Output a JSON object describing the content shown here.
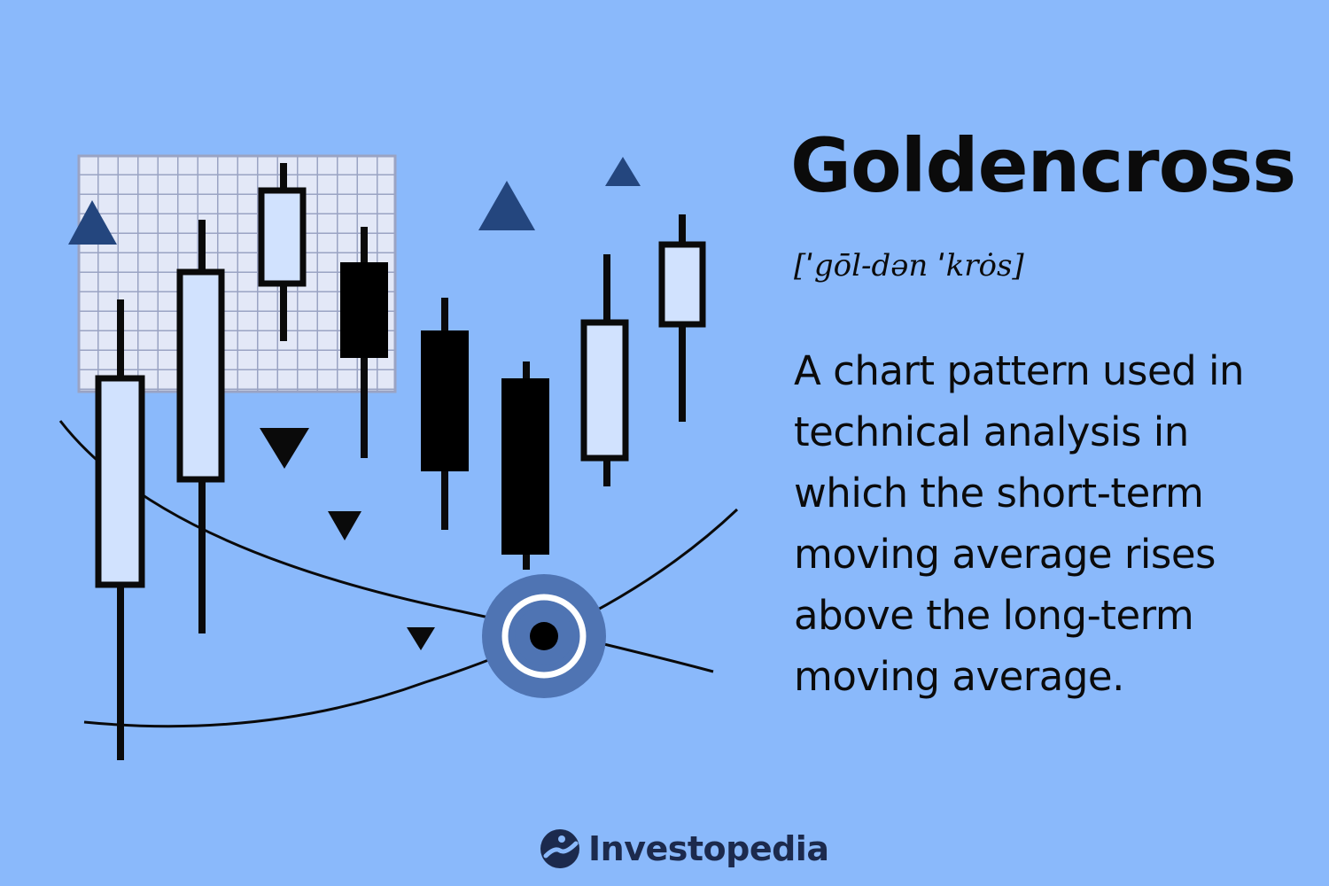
{
  "definition": {
    "term": "Goldencross",
    "pronunciation": "[ˈgōl-dən ˈkrȯs]",
    "text": "A chart pattern used in technical analysis in which the short-term moving average rises above the long-term moving average."
  },
  "brand": {
    "name": "Investopedia",
    "icon": "investopedia-logo-icon"
  },
  "colors": {
    "background": "#8ab9fb",
    "bullish_candle_fill": "#d1e2fe",
    "bearish_candle_fill": "#000000",
    "triangle_up": "#24467e",
    "triangle_down": "#0a0a0a",
    "grid_fill": "#e3e8f7",
    "grid_lines": "#9aa3c3",
    "crossover_ring": "#4f74b3",
    "brand": "#1c2a4d"
  }
}
